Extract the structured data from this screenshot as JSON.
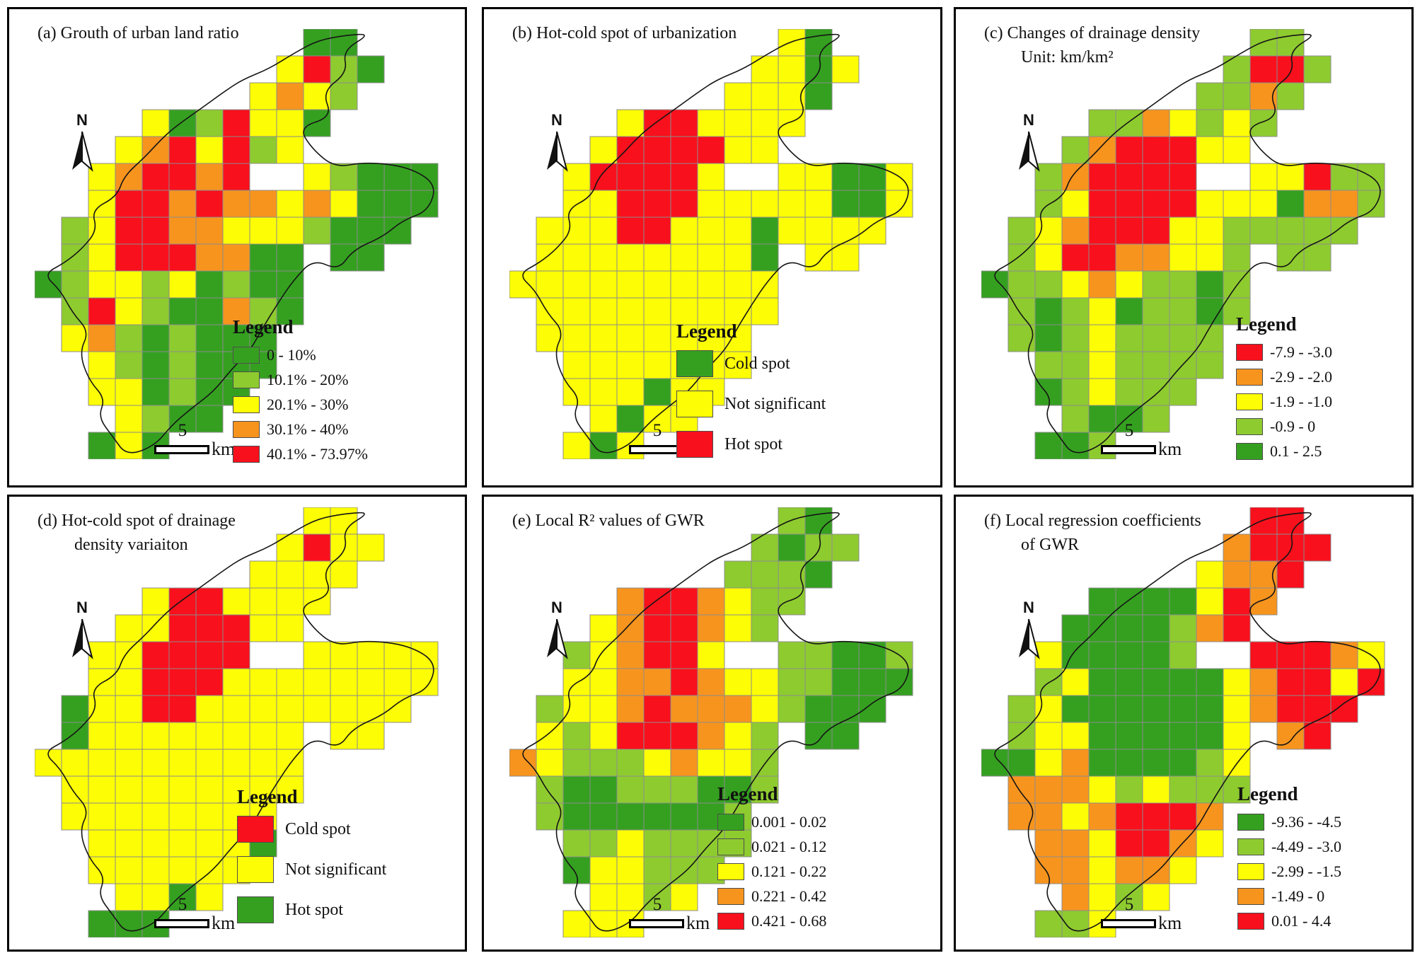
{
  "figure": {
    "north_label": "N",
    "legend_title": "Legend",
    "scale_bar": {
      "number": "5",
      "unit": "km"
    },
    "colors": {
      "dark_green": "#35a020",
      "light_green": "#8ecb2f",
      "yellow": "#fdfd05",
      "orange": "#f7941e",
      "red": "#f8101c",
      "boundary": "#151515",
      "grid_line": "#8c8c8c"
    },
    "color_keys": {
      "G": "dark_green",
      "g": "light_green",
      "y": "yellow",
      "o": "orange",
      "r": "red"
    },
    "cell_size": 38,
    "boundary_waypoints": [
      [
        12.5,
        0.1
      ],
      [
        11.4,
        0.8
      ],
      [
        11.7,
        1.7
      ],
      [
        10.7,
        2.3
      ],
      [
        11.0,
        3.2
      ],
      [
        9.9,
        3.7
      ],
      [
        10.3,
        4.5
      ],
      [
        11.1,
        5.1
      ],
      [
        12.4,
        4.9
      ],
      [
        13.9,
        5.2
      ],
      [
        14.9,
        5.8
      ],
      [
        14.7,
        6.7
      ],
      [
        13.7,
        7.1
      ],
      [
        12.9,
        7.8
      ],
      [
        11.9,
        8.2
      ],
      [
        11.3,
        8.9
      ],
      [
        10.3,
        8.6
      ],
      [
        9.7,
        9.4
      ],
      [
        9.0,
        10.2
      ],
      [
        8.4,
        11.1
      ],
      [
        8.1,
        12.0
      ],
      [
        7.3,
        12.7
      ],
      [
        6.6,
        13.4
      ],
      [
        5.9,
        14.1
      ],
      [
        5.1,
        14.8
      ],
      [
        4.4,
        15.5
      ],
      [
        3.5,
        15.8
      ],
      [
        2.9,
        15.2
      ],
      [
        2.3,
        14.5
      ],
      [
        2.7,
        13.7
      ],
      [
        2.0,
        13.0
      ],
      [
        1.6,
        12.1
      ],
      [
        2.1,
        11.3
      ],
      [
        1.4,
        10.5
      ],
      [
        0.9,
        9.7
      ],
      [
        0.4,
        9.2
      ],
      [
        1.1,
        8.7
      ],
      [
        1.7,
        8.1
      ],
      [
        2.4,
        7.5
      ],
      [
        2.1,
        6.8
      ],
      [
        3.0,
        6.2
      ],
      [
        3.4,
        5.4
      ],
      [
        4.1,
        4.8
      ],
      [
        4.7,
        4.1
      ],
      [
        5.4,
        3.5
      ],
      [
        6.2,
        2.9
      ],
      [
        7.0,
        2.4
      ],
      [
        7.8,
        1.9
      ],
      [
        8.7,
        1.4
      ],
      [
        9.6,
        0.9
      ],
      [
        10.6,
        0.5
      ],
      [
        11.6,
        0.2
      ]
    ],
    "panels": [
      {
        "id": "a",
        "title_line1": "(a) Grouth of urban land ratio",
        "title_line2": "",
        "legend_style": "small",
        "legend": [
          {
            "color": "dark_green",
            "label": "0 - 10%"
          },
          {
            "color": "light_green",
            "label": "10.1% - 20%"
          },
          {
            "color": "yellow",
            "label": "20.1% - 30%"
          },
          {
            "color": "orange",
            "label": "30.1% - 40%"
          },
          {
            "color": "red",
            "label": "40.1% - 73.97%"
          }
        ],
        "grid": [
          "..........GG....",
          ".........yrgG...",
          "........yoyg....",
          "....yGgryyG.....",
          "...yoryrgy......",
          "..yorror..ygGGG.",
          "..yrrorooyoyGGG.",
          ".gyrrooyyygGGG..",
          ".gyrrrooGG.GG...",
          "GgyygyGgGG......",
          ".grygGGogG......",
          ".yogGgGGG.......",
          "..ygGgGGG.......",
          "..yyGgGG........",
          "...ygGG.........",
          "..GyG..........."
        ]
      },
      {
        "id": "b",
        "title_line1": "(b) Hot-cold spot of urbanization",
        "title_line2": "",
        "legend_style": "large",
        "legend": [
          {
            "color": "dark_green",
            "label": "Cold spot"
          },
          {
            "color": "yellow",
            "label": "Not significant"
          },
          {
            "color": "red",
            "label": "Hot spot"
          }
        ],
        "grid": [
          "..........yG....",
          ".........yyGy...",
          "........yyyG....",
          "....yrryyyy.....",
          "...yrrrryy......",
          "..yrrrry..yyGGy.",
          "..yyrrryyyyyGGy.",
          ".yyyrryyyGyyyy..",
          ".yyyyyyyyG.yy...",
          "yyyyyyyyyy......",
          ".yyyyyyyyy......",
          ".yyyyyyyy.......",
          "..yyyyyyy.......",
          "..yyyGyy........",
          "...yGyy.........",
          "..yGy..........."
        ]
      },
      {
        "id": "c",
        "title_line1": "(c) Changes of drainage density",
        "title_line2": "Unit: km/km²",
        "legend_style": "small",
        "legend": [
          {
            "color": "red",
            "label": "-7.9 - -3.0"
          },
          {
            "color": "orange",
            "label": "-2.9 - -2.0"
          },
          {
            "color": "yellow",
            "label": "-1.9 - -1.0"
          },
          {
            "color": "light_green",
            "label": "-0.9 - 0"
          },
          {
            "color": "dark_green",
            "label": "0.1 - 2.5"
          }
        ],
        "grid": [
          "..........gg....",
          ".........grrg...",
          "........ggog....",
          "....ggoygyg.....",
          "...gorrryy......",
          "..gorrrr..yyrgg.",
          "..gyrrrryyyGoog.",
          ".gyorrryyggggg..",
          ".gyrrooyyg.gg...",
          "GggyoyggGg......",
          ".gGgyGggGg......",
          ".gGgygggg.......",
          "..ggygggg.......",
          "..Ggyggg........",
          "...gGGg.........",
          "..GGg..........."
        ]
      },
      {
        "id": "d",
        "title_line1": "(d) Hot-cold spot of drainage",
        "title_line2": "density variaiton",
        "legend_style": "large",
        "legend": [
          {
            "color": "red",
            "label": "Cold spot"
          },
          {
            "color": "yellow",
            "label": "Not significant"
          },
          {
            "color": "dark_green",
            "label": "Hot spot"
          }
        ],
        "grid": [
          "..........yy....",
          ".........yryy...",
          "........yyyy....",
          "....yrryyyy.....",
          "...yyrrryy......",
          "..yyrrrr..yyyyy.",
          "..yyrrryyyyyyyy.",
          ".Gyyrryyyyyyyy..",
          ".Gyyyyyyyy.yy...",
          "yyyyyyyyyy......",
          ".yyyyyyyyy......",
          ".yyyyyyyy.......",
          "..yyyyyyG.......",
          "..yyyyyy........",
          "...yyGy.........",
          "..GGG..........."
        ]
      },
      {
        "id": "e",
        "title_line1": "(e) Local R²  values of GWR",
        "title_line2": "",
        "legend_style": "small",
        "legend": [
          {
            "color": "dark_green",
            "label": "0.001 - 0.02"
          },
          {
            "color": "light_green",
            "label": "0.021 - 0.12"
          },
          {
            "color": "yellow",
            "label": "0.121 - 0.22"
          },
          {
            "color": "orange",
            "label": "0.221 - 0.42"
          },
          {
            "color": "red",
            "label": "0.421 - 0.68"
          }
        ],
        "grid": [
          "..........gG....",
          ".........gGgg...",
          "........gggG....",
          "....orroygg.....",
          "...yorroyg......",
          "..gyorry..ggGGg.",
          "..yyooroyyggGGG.",
          ".gyyoroooygGGG..",
          ".ygyrrroyg.GG...",
          "oygggyoyyg......",
          ".gGGgggGGg......",
          ".gGGGGGGg.......",
          "..ggygggg.......",
          "..Gyyggg........",
          "...yygy.........",
          "..yyy..........."
        ]
      },
      {
        "id": "f",
        "title_line1": "(f) Local regression coefficients",
        "title_line2": "of GWR",
        "legend_style": "small",
        "legend": [
          {
            "color": "dark_green",
            "label": "-9.36 - -4.5"
          },
          {
            "color": "light_green",
            "label": "-4.49 - -3.0"
          },
          {
            "color": "yellow",
            "label": "-2.99 - -1.5"
          },
          {
            "color": "orange",
            "label": "-1.49 - 0"
          },
          {
            "color": "red",
            "label": "0.01 - 4.4"
          }
        ],
        "grid": [
          "..........rr....",
          ".........orrr...",
          "........yoor....",
          "....GGGGyro.....",
          "...GGGGgor......",
          "..yGGGGg..rrroy.",
          "..gyGGGGGyorryr.",
          ".gyGGGGGGyorrr..",
          ".gyyGGGGGy.or...",
          "GGyoGGGGgy......",
          ".oooygyggg......",
          ".ooyorrro.......",
          "..ooyrroy.......",
          "..ooyooy........",
          "...oygy.........",
          "..ggy..........."
        ]
      }
    ]
  }
}
